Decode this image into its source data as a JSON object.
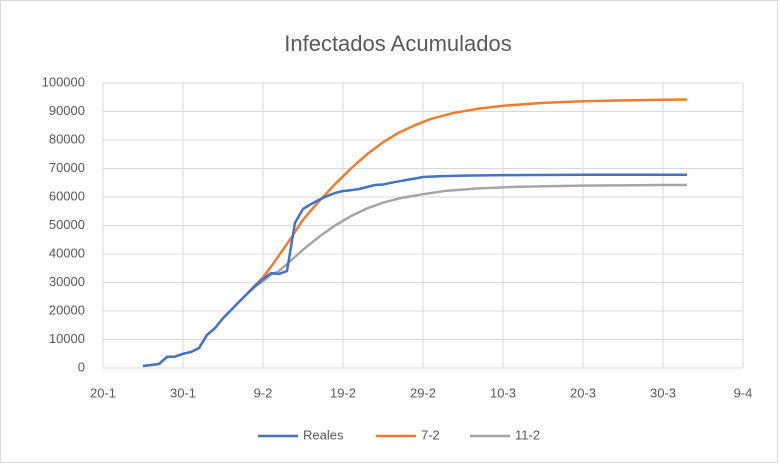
{
  "chart_data": {
    "type": "line",
    "title": "Infectados Acumulados",
    "xlim": [
      "20-1",
      "9-4"
    ],
    "xticks": [
      "20-1",
      "30-1",
      "9-2",
      "19-2",
      "29-2",
      "10-3",
      "20-3",
      "30-3",
      "9-4"
    ],
    "ylim": [
      0,
      100000
    ],
    "yticks": [
      0,
      10000,
      20000,
      30000,
      40000,
      50000,
      60000,
      70000,
      80000,
      90000,
      100000
    ],
    "grid": true,
    "legend": "bottom",
    "series": [
      {
        "name": "Reales",
        "color": "#4472c4",
        "x": [
          "25-1",
          "27-1",
          "28-1",
          "29-1",
          "30-1",
          "31-1",
          "1-2",
          "2-2",
          "3-2",
          "4-2",
          "5-2",
          "6-2",
          "7-2",
          "8-2",
          "9-2",
          "10-2",
          "11-2",
          "12-2",
          "13-2",
          "14-2",
          "15-2",
          "16-2",
          "17-2",
          "18-2",
          "19-2",
          "20-2",
          "21-2",
          "22-2",
          "23-2",
          "24-2",
          "25-2",
          "26-2",
          "27-2",
          "28-2",
          "29-2",
          "2-3",
          "5-3",
          "10-3",
          "20-3",
          "30-3",
          "2-4"
        ],
        "values": [
          700,
          1400,
          3900,
          4000,
          5000,
          5600,
          7000,
          11600,
          14000,
          17500,
          20300,
          23200,
          26000,
          28800,
          31200,
          33300,
          33000,
          34000,
          51000,
          55800,
          57500,
          59000,
          60300,
          61400,
          62100,
          62400,
          62800,
          63500,
          64200,
          64400,
          65000,
          65500,
          66000,
          66500,
          67000,
          67300,
          67500,
          67700,
          67800,
          67800,
          67800
        ]
      },
      {
        "name": "7-2",
        "color": "#ed7d31",
        "x": [
          "7-2",
          "8-2",
          "9-2",
          "10-2",
          "12-2",
          "14-2",
          "16-2",
          "18-2",
          "20-2",
          "22-2",
          "24-2",
          "26-2",
          "28-2",
          "1-3",
          "4-3",
          "7-3",
          "10-3",
          "15-3",
          "20-3",
          "25-3",
          "30-3",
          "2-4"
        ],
        "values": [
          26000,
          29000,
          31800,
          35500,
          43500,
          52000,
          58500,
          64500,
          70000,
          75000,
          79200,
          82600,
          85200,
          87400,
          89600,
          91000,
          92000,
          93000,
          93600,
          93900,
          94100,
          94200
        ]
      },
      {
        "name": "11-2",
        "color": "#a5a5a5",
        "x": [
          "25-1",
          "27-1",
          "28-1",
          "29-1",
          "30-1",
          "31-1",
          "1-2",
          "2-2",
          "3-2",
          "4-2",
          "5-2",
          "6-2",
          "7-2",
          "8-2",
          "9-2",
          "10-2",
          "11-2",
          "12-2",
          "14-2",
          "16-2",
          "18-2",
          "20-2",
          "22-2",
          "24-2",
          "26-2",
          "29-2",
          "3-3",
          "7-3",
          "12-3",
          "20-3",
          "30-3",
          "2-4"
        ],
        "values": [
          700,
          1400,
          3900,
          4000,
          5000,
          5600,
          7000,
          11600,
          14000,
          17500,
          20300,
          23200,
          26000,
          28500,
          30500,
          32700,
          34000,
          36500,
          41500,
          46000,
          50000,
          53300,
          56000,
          58000,
          59500,
          61000,
          62200,
          63000,
          63600,
          64000,
          64200,
          64200
        ]
      }
    ]
  }
}
